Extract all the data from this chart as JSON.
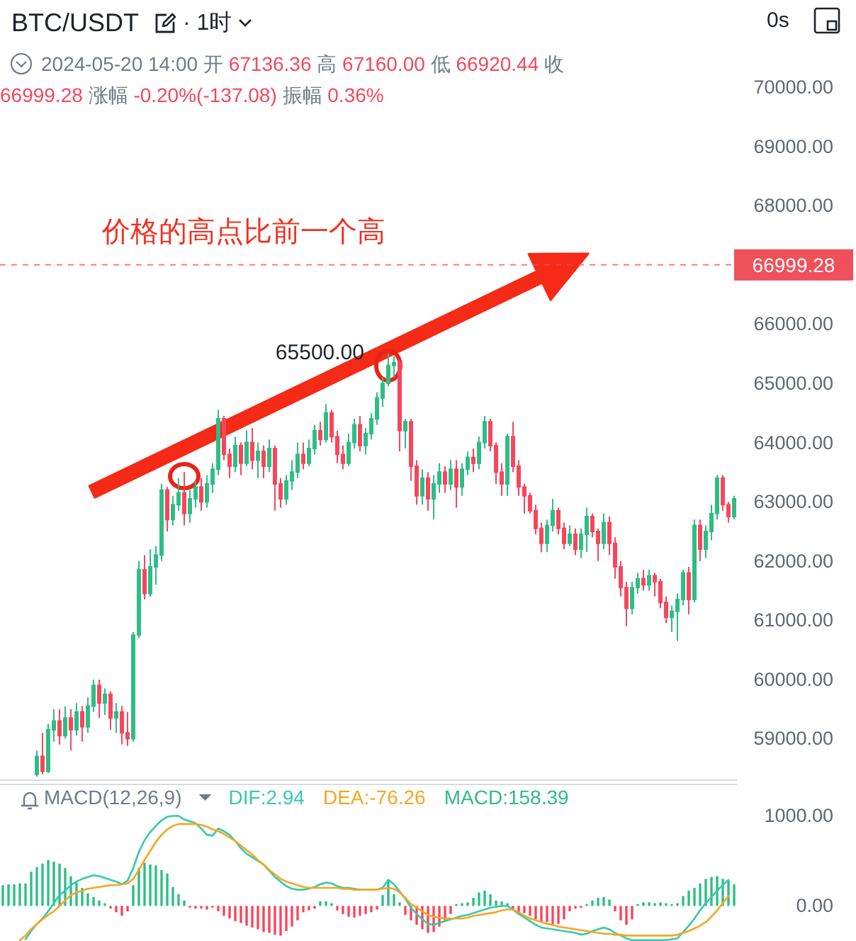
{
  "chart_data": [
    {
      "type": "candlestick",
      "title": "BTC/USDT",
      "subtitle": "2024-05-20 14:00 开 67136.36 高 67160.00 低 66920.44 收 66999.28 涨幅 -0.20%(-137.08) 振幅 0.36%",
      "categories": [
        null,
        null,
        null,
        null,
        null,
        null,
        null,
        null,
        null,
        null,
        null,
        null,
        null,
        null,
        null,
        null,
        null,
        null,
        null,
        null,
        null,
        null,
        null,
        null,
        null,
        null,
        null,
        null,
        null,
        null,
        null,
        null,
        null,
        null,
        null,
        null,
        null,
        null,
        null,
        null,
        null,
        null,
        null,
        null,
        null,
        null,
        null,
        null,
        null,
        null,
        null,
        null,
        null,
        null,
        null,
        null,
        null,
        null,
        null,
        null,
        null,
        null,
        null,
        null,
        null,
        null,
        null,
        null,
        null,
        null,
        null,
        null,
        null,
        null,
        null,
        null,
        null,
        null,
        null,
        null,
        null,
        null,
        null,
        null,
        null,
        null,
        null,
        null,
        null,
        null,
        null,
        null,
        null,
        null,
        null,
        null,
        null,
        null,
        null,
        null,
        null,
        null,
        null,
        null,
        null,
        null,
        null,
        null,
        null,
        null,
        null,
        null,
        null,
        null,
        null,
        null,
        null,
        null,
        null,
        null,
        null,
        null,
        null,
        null,
        null,
        null,
        null,
        null,
        null,
        null
      ],
      "ohlc": [
        null,
        null,
        null,
        null,
        null,
        null,
        [
          58400,
          58800,
          58360,
          58700
        ],
        [
          58700,
          59100,
          58400,
          58450
        ],
        [
          58450,
          59250,
          58420,
          59150
        ],
        [
          59150,
          59500,
          58950,
          59300
        ],
        [
          59300,
          59500,
          58900,
          59050
        ],
        [
          59050,
          59550,
          59000,
          59350
        ],
        [
          59350,
          59500,
          58800,
          59150
        ],
        [
          59150,
          59600,
          59050,
          59450
        ],
        [
          59450,
          59550,
          58950,
          59200
        ],
        [
          59200,
          59700,
          59100,
          59550
        ],
        [
          59550,
          60000,
          59450,
          59900
        ],
        [
          59900,
          60000,
          59350,
          59600
        ],
        [
          59600,
          59850,
          59400,
          59750
        ],
        [
          59750,
          59800,
          59150,
          59350
        ],
        [
          59350,
          59600,
          59100,
          59450
        ],
        [
          59450,
          59550,
          58900,
          59100
        ],
        [
          59100,
          59450,
          58880,
          59000
        ],
        [
          59000,
          60800,
          58950,
          60750
        ],
        [
          60750,
          62000,
          60700,
          61850
        ],
        [
          61850,
          62100,
          61350,
          61450
        ],
        [
          61450,
          62200,
          61400,
          61900
        ],
        [
          61900,
          62250,
          61600,
          62100
        ],
        [
          62100,
          63300,
          62000,
          63200
        ],
        [
          63200,
          63250,
          62500,
          62700
        ],
        [
          62700,
          63100,
          62600,
          62950
        ],
        [
          62950,
          63400,
          62850,
          63150
        ],
        [
          63150,
          63500,
          62600,
          62800
        ],
        [
          62800,
          63200,
          62650,
          63050
        ],
        [
          63050,
          63350,
          62900,
          63250
        ],
        [
          63250,
          63400,
          62850,
          63000
        ],
        [
          63000,
          63450,
          62900,
          63300
        ],
        [
          63300,
          63650,
          63150,
          63550
        ],
        [
          63550,
          64550,
          63450,
          64400
        ],
        [
          64400,
          64450,
          63700,
          63800
        ],
        [
          63800,
          63900,
          63400,
          63600
        ],
        [
          63600,
          64100,
          63500,
          63950
        ],
        [
          63950,
          64000,
          63450,
          63650
        ],
        [
          63650,
          64200,
          63600,
          64000
        ],
        [
          64000,
          64250,
          63550,
          63700
        ],
        [
          63700,
          64000,
          63400,
          63850
        ],
        [
          63850,
          63950,
          63400,
          63600
        ],
        [
          63600,
          64050,
          63500,
          63900
        ],
        [
          63900,
          63950,
          62850,
          63300
        ],
        [
          63300,
          63400,
          62900,
          63050
        ],
        [
          63050,
          63450,
          62950,
          63350
        ],
        [
          63350,
          63700,
          63200,
          63500
        ],
        [
          63500,
          64000,
          63400,
          63800
        ],
        [
          63800,
          64000,
          63550,
          63650
        ],
        [
          63650,
          64050,
          63600,
          63900
        ],
        [
          63900,
          64300,
          63800,
          64200
        ],
        [
          64200,
          64350,
          63950,
          64050
        ],
        [
          64050,
          64650,
          64000,
          64500
        ],
        [
          64500,
          64550,
          64000,
          64100
        ],
        [
          64100,
          64200,
          63650,
          63800
        ],
        [
          63800,
          63950,
          63550,
          63650
        ],
        [
          63650,
          64150,
          63600,
          64000
        ],
        [
          64000,
          64400,
          63900,
          64300
        ],
        [
          64300,
          64450,
          63850,
          63950
        ],
        [
          63950,
          64250,
          63800,
          64150
        ],
        [
          64150,
          64500,
          64050,
          64400
        ],
        [
          64400,
          64850,
          64300,
          64750
        ],
        [
          64750,
          65100,
          64600,
          65000
        ],
        [
          65000,
          65500,
          64950,
          65300
        ],
        [
          65300,
          65450,
          65100,
          65350
        ],
        [
          65350,
          65400,
          63850,
          64200
        ],
        [
          64200,
          64400,
          63900,
          64350
        ],
        [
          64350,
          64400,
          63350,
          63600
        ],
        [
          63600,
          63700,
          62950,
          63100
        ],
        [
          63100,
          63550,
          62950,
          63400
        ],
        [
          63400,
          63500,
          62850,
          63050
        ],
        [
          63050,
          63450,
          62700,
          63300
        ],
        [
          63300,
          63650,
          63150,
          63500
        ],
        [
          63500,
          63600,
          63150,
          63300
        ],
        [
          63300,
          63700,
          63200,
          63550
        ],
        [
          63550,
          63700,
          62900,
          63250
        ],
        [
          63250,
          63650,
          63100,
          63550
        ],
        [
          63550,
          63850,
          63450,
          63750
        ],
        [
          63750,
          63900,
          63500,
          63650
        ],
        [
          63650,
          64100,
          63550,
          64000
        ],
        [
          64000,
          64450,
          63900,
          64350
        ],
        [
          64350,
          64400,
          63850,
          63950
        ],
        [
          63950,
          64000,
          63300,
          63500
        ],
        [
          63500,
          63650,
          63100,
          63300
        ],
        [
          63300,
          64150,
          63100,
          64100
        ],
        [
          64100,
          64350,
          63500,
          63600
        ],
        [
          63600,
          63700,
          63100,
          63250
        ],
        [
          63250,
          63300,
          62800,
          63100
        ],
        [
          63100,
          63150,
          62800,
          62850
        ],
        [
          62850,
          62950,
          62450,
          62550
        ],
        [
          62550,
          62650,
          62150,
          62300
        ],
        [
          62300,
          62700,
          62150,
          62600
        ],
        [
          62600,
          63050,
          62500,
          62850
        ],
        [
          62850,
          62900,
          62450,
          62550
        ],
        [
          62550,
          62650,
          62200,
          62300
        ],
        [
          62300,
          62600,
          62250,
          62450
        ],
        [
          62450,
          62550,
          62100,
          62200
        ],
        [
          62200,
          62550,
          62050,
          62450
        ],
        [
          62450,
          62900,
          62150,
          62750
        ],
        [
          62750,
          62800,
          62400,
          62500
        ],
        [
          62500,
          62550,
          62000,
          62300
        ],
        [
          62300,
          62800,
          62200,
          62650
        ],
        [
          62650,
          62750,
          62100,
          62300
        ],
        [
          62300,
          62400,
          61700,
          61900
        ],
        [
          61900,
          62000,
          61400,
          61550
        ],
        [
          61550,
          61650,
          60900,
          61200
        ],
        [
          61200,
          61650,
          61100,
          61550
        ],
        [
          61550,
          61800,
          61450,
          61700
        ],
        [
          61700,
          61850,
          61500,
          61600
        ],
        [
          61600,
          61850,
          61500,
          61750
        ],
        [
          61750,
          61800,
          61400,
          61650
        ],
        [
          61650,
          61700,
          61200,
          61300
        ],
        [
          61300,
          61400,
          60950,
          61050
        ],
        [
          61050,
          61250,
          60800,
          61150
        ],
        [
          61150,
          61450,
          60650,
          61350
        ],
        [
          61350,
          61850,
          61250,
          61800
        ],
        [
          61800,
          61900,
          61100,
          61350
        ],
        [
          61350,
          62700,
          61300,
          62600
        ],
        [
          62600,
          62700,
          62000,
          62200
        ],
        [
          62200,
          62600,
          62050,
          62500
        ],
        [
          62500,
          62950,
          62350,
          62800
        ],
        [
          62800,
          63450,
          62700,
          63400
        ],
        [
          63400,
          63450,
          62850,
          62950
        ],
        [
          62950,
          63000,
          62650,
          62750
        ],
        [
          62750,
          63100,
          62700,
          63050
        ]
      ],
      "colors": [
        null,
        null,
        null,
        null,
        null,
        null,
        "#2ebd85",
        "#f6465d",
        "#2ebd85",
        "#2ebd85",
        "#f6465d",
        "#2ebd85",
        "#f6465d",
        "#2ebd85",
        "#f6465d",
        "#2ebd85",
        "#2ebd85",
        "#f6465d",
        "#2ebd85",
        "#f6465d",
        "#2ebd85",
        "#f6465d",
        "#f6465d",
        "#2ebd85",
        "#2ebd85",
        "#f6465d",
        "#2ebd85",
        "#2ebd85",
        "#2ebd85",
        "#f6465d",
        "#2ebd85",
        "#2ebd85",
        "#f6465d",
        "#2ebd85",
        "#2ebd85",
        "#f6465d",
        "#2ebd85",
        "#2ebd85",
        "#2ebd85",
        "#f6465d",
        "#f6465d",
        "#2ebd85",
        "#f6465d",
        "#2ebd85",
        "#f6465d",
        "#2ebd85",
        "#f6465d",
        "#2ebd85",
        "#f6465d",
        "#f6465d",
        "#2ebd85",
        "#2ebd85",
        "#2ebd85",
        "#f6465d",
        "#2ebd85",
        "#2ebd85",
        "#f6465d",
        "#2ebd85",
        "#f6465d",
        "#f6465d",
        "#f6465d",
        "#2ebd85",
        "#2ebd85",
        "#f6465d",
        "#2ebd85",
        "#2ebd85",
        "#2ebd85",
        "#2ebd85",
        "#2ebd85",
        "#2ebd85",
        "#f6465d",
        "#2ebd85",
        "#f6465d",
        "#f6465d",
        "#2ebd85",
        "#f6465d",
        "#2ebd85",
        "#2ebd85",
        "#f6465d",
        "#2ebd85",
        "#f6465d",
        "#2ebd85",
        "#2ebd85",
        "#f6465d",
        "#2ebd85",
        "#2ebd85",
        "#f6465d",
        "#f6465d",
        "#f6465d",
        "#2ebd85",
        "#f6465d",
        "#f6465d",
        "#f6465d",
        "#f6465d",
        "#f6465d",
        "#f6465d",
        "#2ebd85",
        "#2ebd85",
        "#f6465d",
        "#f6465d",
        "#2ebd85",
        "#f6465d",
        "#2ebd85",
        "#2ebd85",
        "#f6465d",
        "#f6465d",
        "#2ebd85",
        "#f6465d",
        "#f6465d",
        "#f6465d",
        "#f6465d",
        "#2ebd85",
        "#2ebd85",
        "#f6465d",
        "#2ebd85",
        "#f6465d",
        "#f6465d",
        "#f6465d",
        "#2ebd85",
        "#2ebd85",
        "#2ebd85",
        "#f6465d",
        "#2ebd85",
        "#f6465d",
        "#2ebd85",
        "#2ebd85",
        "#2ebd85",
        "#f6465d",
        "#f6465d",
        "#2ebd85"
      ],
      "ylim": [
        58300,
        70000
      ],
      "yticks": [
        {
          "value": 59000,
          "label": "59000.00"
        },
        {
          "value": 60000,
          "label": "60000.00"
        },
        {
          "value": 61000,
          "label": "61000.00"
        },
        {
          "value": 62000,
          "label": "62000.00"
        },
        {
          "value": 63000,
          "label": "63000.00"
        },
        {
          "value": 64000,
          "label": "64000.00"
        },
        {
          "value": 65000,
          "label": "65000.00"
        },
        {
          "value": 66000,
          "label": "66000.00"
        },
        {
          "value": 68000,
          "label": "68000.00"
        },
        {
          "value": 69000,
          "label": "69000.00"
        },
        {
          "value": 70000,
          "label": "70000.00"
        }
      ],
      "tick_labels": "y",
      "ref_lines": [
        {
          "axis": "y",
          "value": 66999.28,
          "label": "66999.28",
          "color": "#f0505a",
          "line_style": "dashed"
        }
      ],
      "annotations": [
        "· 1时",
        "0s",
        "价格的高点比前一个高",
        "65500.00"
      ]
    },
    {
      "type": "bar",
      "title": "MACD(12,26,9)",
      "categories": [
        null,
        null,
        null,
        null,
        null,
        null,
        null,
        null,
        null,
        null,
        null,
        null,
        null,
        null,
        null,
        null,
        null,
        null,
        null,
        null,
        null,
        null,
        null,
        null,
        null,
        null,
        null,
        null,
        null,
        null,
        null,
        null,
        null,
        null,
        null,
        null,
        null,
        null,
        null,
        null,
        null,
        null,
        null,
        null,
        null,
        null,
        null,
        null,
        null,
        null,
        null,
        null,
        null,
        null,
        null,
        null,
        null,
        null,
        null,
        null,
        null,
        null,
        null,
        null,
        null,
        null,
        null,
        null,
        null,
        null,
        null,
        null,
        null,
        null,
        null,
        null,
        null,
        null,
        null,
        null,
        null,
        null,
        null,
        null,
        null,
        null,
        null,
        null,
        null,
        null,
        null,
        null,
        null,
        null,
        null,
        null,
        null,
        null,
        null,
        null,
        null,
        null,
        null,
        null,
        null,
        null,
        null,
        null,
        null,
        null,
        null,
        null,
        null,
        null,
        null,
        null,
        null,
        null,
        null,
        null,
        null,
        null,
        null,
        null,
        null,
        null,
        null,
        null,
        null,
        null
      ],
      "series": [
        {
          "name": "DIF:2.94",
          "type": "line",
          "color": "#36c9ab",
          "values": [
            null,
            null,
            null,
            null,
            -370,
            -280,
            -200,
            -140,
            -60,
            30,
            120,
            170,
            230,
            270,
            300,
            320,
            340,
            330,
            310,
            290,
            270,
            240,
            280,
            420,
            600,
            730,
            820,
            890,
            950,
            990,
            1000,
            1000,
            960,
            940,
            920,
            860,
            790,
            780,
            860,
            830,
            790,
            720,
            640,
            580,
            540,
            500,
            460,
            390,
            320,
            270,
            220,
            190,
            180,
            180,
            190,
            210,
            240,
            260,
            250,
            220,
            200,
            200,
            190,
            180,
            180,
            180,
            180,
            200,
            290,
            240,
            160,
            80,
            -20,
            -90,
            -150,
            -200,
            -210,
            -190,
            -170,
            -150,
            -130,
            -110,
            -100,
            -80,
            -60,
            -40,
            -20,
            -10,
            0,
            0,
            -40,
            -90,
            -130,
            -170,
            -210,
            -240,
            -250,
            -260,
            -270,
            -280,
            -290,
            -300,
            -320,
            -310,
            -280,
            -260,
            -240,
            -260,
            -300,
            -330,
            -360,
            -380,
            -380,
            -380,
            -380,
            -380,
            -380,
            -380,
            -370,
            -360,
            -290,
            -220,
            -140,
            -50,
            30,
            100,
            170,
            230,
            290,
            null
          ]
        },
        {
          "name": "DEA:-76.26",
          "type": "line",
          "color": "#f5a623",
          "values": [
            null,
            null,
            null,
            -380,
            -330,
            -260,
            -200,
            -150,
            -100,
            -60,
            0,
            60,
            120,
            150,
            170,
            190,
            200,
            210,
            220,
            230,
            230,
            240,
            250,
            300,
            400,
            510,
            610,
            710,
            790,
            850,
            890,
            910,
            910,
            910,
            910,
            900,
            880,
            850,
            830,
            800,
            760,
            720,
            670,
            620,
            570,
            510,
            460,
            400,
            350,
            300,
            270,
            250,
            230,
            210,
            200,
            200,
            200,
            200,
            200,
            200,
            190,
            190,
            180,
            180,
            180,
            180,
            180,
            190,
            200,
            190,
            150,
            90,
            20,
            -20,
            -60,
            -100,
            -120,
            -130,
            -140,
            -140,
            -140,
            -140,
            -130,
            -110,
            -100,
            -90,
            -80,
            -70,
            -50,
            -40,
            -40,
            -70,
            -110,
            -140,
            -160,
            -180,
            -200,
            -210,
            -230,
            -240,
            -250,
            -260,
            -270,
            -280,
            -290,
            -300,
            -310,
            -310,
            -320,
            -320,
            -330,
            -330,
            -330,
            -330,
            -330,
            -330,
            -330,
            -330,
            -330,
            -320,
            -300,
            -280,
            -250,
            -220,
            -180,
            -120,
            -50,
            30,
            110,
            null
          ]
        },
        {
          "name": "MACD:158.39",
          "color": "#2ebd85",
          "values": [
            230,
            240,
            240,
            250,
            250,
            380,
            430,
            470,
            510,
            490,
            470,
            420,
            330,
            260,
            200,
            140,
            100,
            60,
            30,
            -30,
            -70,
            -110,
            -60,
            230,
            420,
            480,
            460,
            450,
            400,
            360,
            210,
            130,
            60,
            -20,
            -30,
            -30,
            -40,
            -20,
            -60,
            -110,
            -140,
            -170,
            -190,
            -220,
            -240,
            -260,
            -290,
            -300,
            -320,
            -330,
            -280,
            -230,
            -160,
            -70,
            -50,
            -30,
            50,
            50,
            30,
            -50,
            -90,
            -120,
            -130,
            -110,
            -90,
            -70,
            -40,
            120,
            290,
            130,
            40,
            -100,
            -160,
            -210,
            -260,
            -300,
            -290,
            -230,
            -160,
            -90,
            20,
            30,
            40,
            90,
            150,
            170,
            130,
            60,
            50,
            30,
            -40,
            -70,
            -80,
            -110,
            -150,
            -170,
            -180,
            -200,
            -200,
            -150,
            -60,
            -30,
            -20,
            20,
            60,
            90,
            100,
            70,
            -60,
            -160,
            -210,
            -150,
            20,
            40,
            40,
            30,
            40,
            30,
            20,
            30,
            110,
            170,
            200,
            250,
            300,
            320,
            330,
            300,
            280,
            240
          ],
          "colors": [
            "#2ebd85",
            "#2ebd85",
            "#2ebd85",
            "#2ebd85",
            "#2ebd85",
            "#2ebd85",
            "#2ebd85",
            "#2ebd85",
            "#2ebd85",
            "#2ebd85",
            "#2ebd85",
            "#2ebd85",
            "#2ebd85",
            "#2ebd85",
            "#2ebd85",
            "#2ebd85",
            "#2ebd85",
            "#2ebd85",
            "#2ebd85",
            "#f6465d",
            "#f6465d",
            "#f6465d",
            "#f6465d",
            "#2ebd85",
            "#2ebd85",
            "#2ebd85",
            "#2ebd85",
            "#2ebd85",
            "#2ebd85",
            "#2ebd85",
            "#2ebd85",
            "#2ebd85",
            "#2ebd85",
            "#f6465d",
            "#f6465d",
            "#f6465d",
            "#f6465d",
            "#f6465d",
            "#f6465d",
            "#f6465d",
            "#f6465d",
            "#f6465d",
            "#f6465d",
            "#f6465d",
            "#f6465d",
            "#f6465d",
            "#f6465d",
            "#f6465d",
            "#f6465d",
            "#f6465d",
            "#f6465d",
            "#f6465d",
            "#f6465d",
            "#f6465d",
            "#f6465d",
            "#f6465d",
            "#2ebd85",
            "#2ebd85",
            "#2ebd85",
            "#f6465d",
            "#f6465d",
            "#f6465d",
            "#f6465d",
            "#f6465d",
            "#f6465d",
            "#f6465d",
            "#f6465d",
            "#2ebd85",
            "#2ebd85",
            "#2ebd85",
            "#2ebd85",
            "#f6465d",
            "#f6465d",
            "#f6465d",
            "#f6465d",
            "#f6465d",
            "#f6465d",
            "#f6465d",
            "#f6465d",
            "#f6465d",
            "#2ebd85",
            "#2ebd85",
            "#2ebd85",
            "#2ebd85",
            "#2ebd85",
            "#2ebd85",
            "#2ebd85",
            "#2ebd85",
            "#2ebd85",
            "#2ebd85",
            "#f6465d",
            "#f6465d",
            "#f6465d",
            "#f6465d",
            "#f6465d",
            "#f6465d",
            "#f6465d",
            "#f6465d",
            "#f6465d",
            "#f6465d",
            "#f6465d",
            "#f6465d",
            "#f6465d",
            "#2ebd85",
            "#2ebd85",
            "#2ebd85",
            "#2ebd85",
            "#2ebd85",
            "#f6465d",
            "#f6465d",
            "#f6465d",
            "#f6465d",
            "#2ebd85",
            "#2ebd85",
            "#2ebd85",
            "#2ebd85",
            "#2ebd85",
            "#2ebd85",
            "#2ebd85",
            "#2ebd85",
            "#2ebd85",
            "#2ebd85",
            "#2ebd85",
            "#2ebd85",
            "#2ebd85",
            "#2ebd85",
            "#2ebd85",
            "#2ebd85",
            "#2ebd85",
            "#2ebd85"
          ]
        }
      ],
      "ylim": [
        -390,
        1350
      ],
      "yticks": [
        {
          "value": 0,
          "label": "0.00"
        },
        {
          "value": 1000,
          "label": "1000.00"
        }
      ],
      "tick_labels": "y",
      "legend": "top left"
    }
  ]
}
